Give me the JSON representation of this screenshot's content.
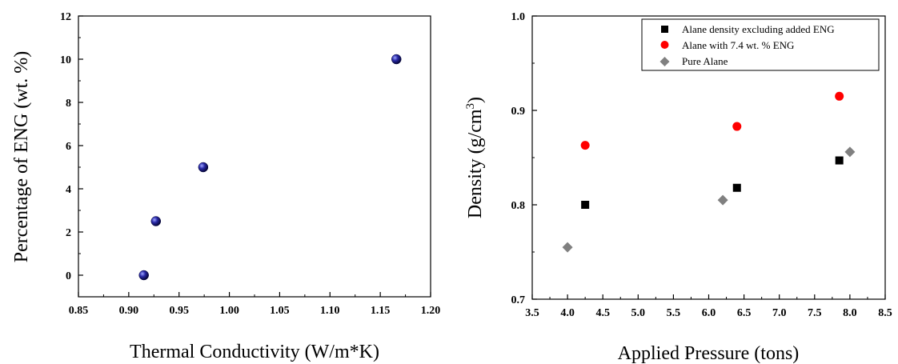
{
  "chart_data": [
    {
      "type": "scatter",
      "xlabel": "Thermal Conductivity (W/m*K)",
      "ylabel": "Percentage of ENG (wt. %)",
      "xlim": [
        0.85,
        1.2
      ],
      "ylim": [
        -1,
        12
      ],
      "xticks": [
        "0.85",
        "0.90",
        "0.95",
        "1.00",
        "1.05",
        "1.10",
        "1.15",
        "1.20"
      ],
      "yticks": [
        "0",
        "2",
        "4",
        "6",
        "8",
        "10",
        "12"
      ],
      "grid": false,
      "series": [
        {
          "marker": "sphere",
          "color": "#1a1a8c",
          "points": [
            {
              "x": 0.915,
              "y": 0
            },
            {
              "x": 0.927,
              "y": 2.5
            },
            {
              "x": 0.974,
              "y": 5
            },
            {
              "x": 1.166,
              "y": 10
            }
          ]
        }
      ]
    },
    {
      "type": "scatter",
      "xlabel": "Applied Pressure (tons)",
      "ylabel_main": "Density (g/cm",
      "ylabel_sup": "3",
      "ylabel_end": ")",
      "xlim": [
        3.5,
        8.5
      ],
      "ylim": [
        0.7,
        1.0
      ],
      "xticks": [
        "3.5",
        "4.0",
        "4.5",
        "5.0",
        "5.5",
        "6.0",
        "6.5",
        "7.0",
        "7.5",
        "8.0",
        "8.5"
      ],
      "yticks": [
        "0.7",
        "0.8",
        "0.9",
        "1.0"
      ],
      "grid": false,
      "legend_position": "top-right",
      "series": [
        {
          "name": "Alane density excluding added ENG",
          "marker": "square",
          "color": "#000000",
          "points": [
            {
              "x": 4.25,
              "y": 0.8
            },
            {
              "x": 6.4,
              "y": 0.818
            },
            {
              "x": 7.85,
              "y": 0.847
            }
          ]
        },
        {
          "name": "Alane with 7.4 wt. % ENG",
          "marker": "circle",
          "color": "#ff0000",
          "points": [
            {
              "x": 4.25,
              "y": 0.863
            },
            {
              "x": 6.4,
              "y": 0.883
            },
            {
              "x": 7.85,
              "y": 0.915
            }
          ]
        },
        {
          "name": "Pure Alane",
          "marker": "diamond",
          "color": "#808080",
          "points": [
            {
              "x": 4.0,
              "y": 0.755
            },
            {
              "x": 6.2,
              "y": 0.805
            },
            {
              "x": 8.0,
              "y": 0.856
            }
          ]
        }
      ]
    }
  ]
}
